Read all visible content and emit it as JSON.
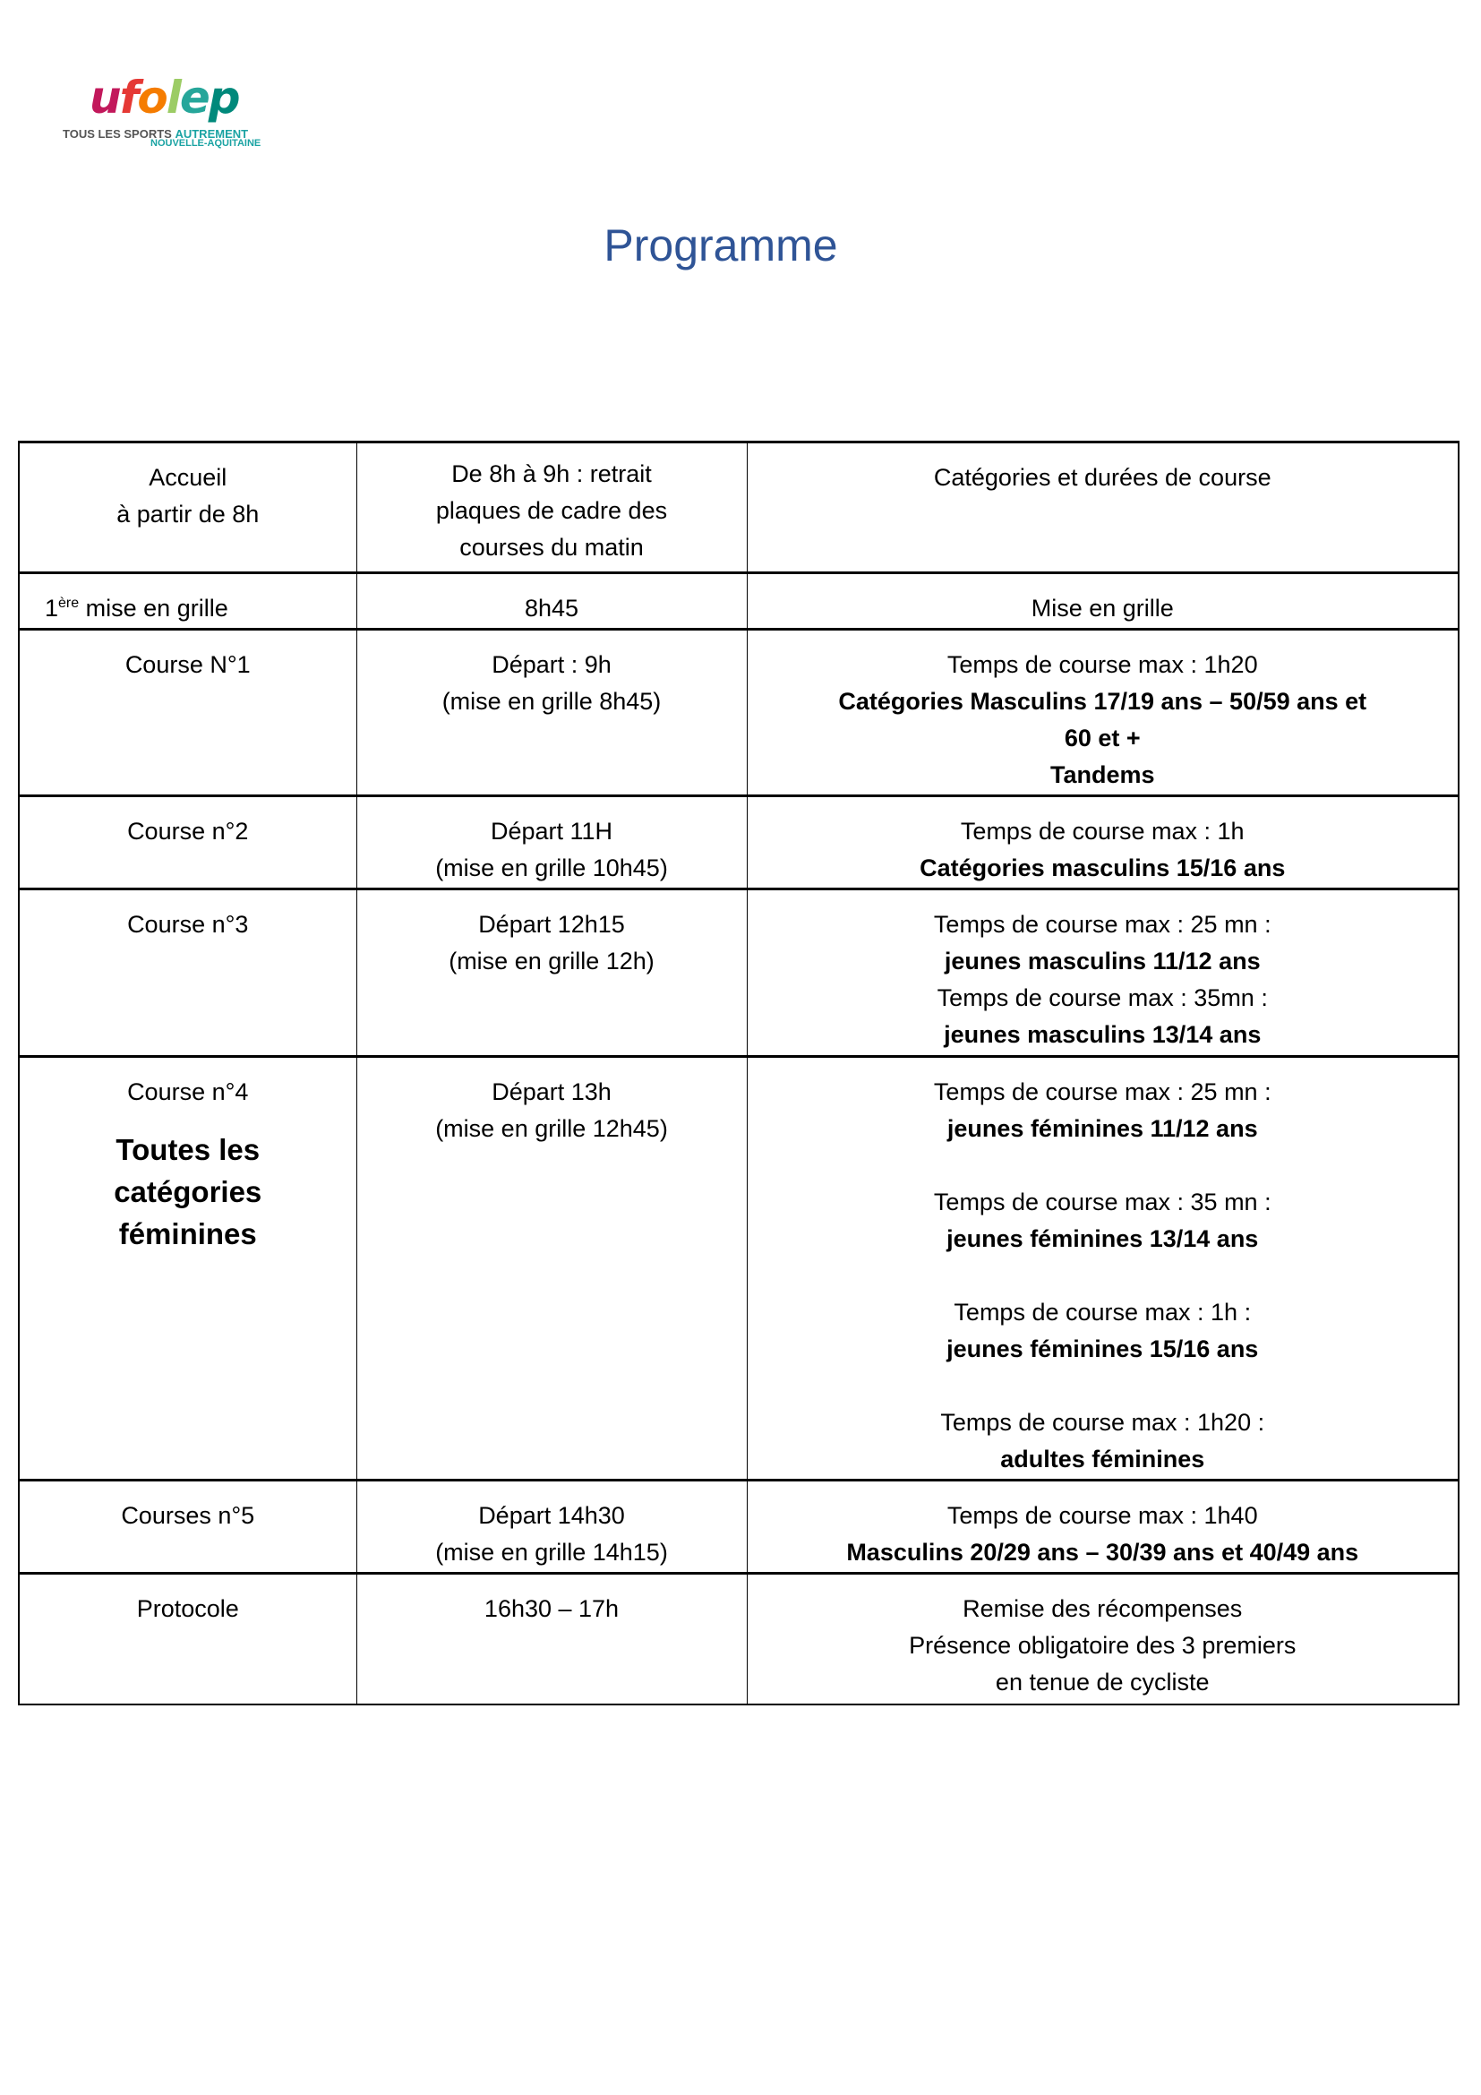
{
  "logo": {
    "word": "ufolep",
    "tagline": "TOUS LES SPORTS",
    "tagline_accent": "AUTREMENT",
    "region": "NOUVELLE-AQUITAINE"
  },
  "title": "Programme",
  "rows": [
    {
      "col1": [
        "Accueil",
        "à partir de 8h"
      ],
      "col2": [
        "De 8h à 9h : retrait",
        "plaques de cadre des",
        "courses du matin"
      ],
      "col3": [
        "Catégories et durées de course"
      ]
    },
    {
      "col1_num": "1",
      "col1_sup": "ère",
      "col1_rest": " mise en grille",
      "col2": [
        "8h45"
      ],
      "col3": [
        "Mise en grille"
      ]
    },
    {
      "col1": [
        "Course N°1"
      ],
      "col2": [
        "Départ : 9h",
        "(mise en grille 8h45)"
      ],
      "col3_normal": "Temps de course max : 1h20",
      "col3_bold": [
        "Catégories Masculins 17/19 ans – 50/59 ans et",
        "60 et +",
        "Tandems"
      ]
    },
    {
      "col1": [
        "Course n°2"
      ],
      "col2": [
        "Départ 11H",
        "(mise en grille 10h45)"
      ],
      "col3_normal": "Temps de course max : 1h",
      "col3_bold": [
        "Catégories masculins 15/16 ans"
      ]
    },
    {
      "col1": [
        "Course n°3"
      ],
      "col2": [
        "Départ 12h15",
        "(mise en grille 12h)"
      ],
      "col3_pairs": [
        [
          "Temps de course max : 25 mn :",
          "jeunes masculins 11/12 ans"
        ],
        [
          "Temps de course max : 35mn :",
          "jeunes masculins 13/14 ans"
        ]
      ]
    },
    {
      "col1": [
        "Course n°4"
      ],
      "col1_bold": [
        "Toutes les",
        "catégories",
        "féminines"
      ],
      "col2": [
        "Départ 13h",
        "(mise en grille 12h45)"
      ],
      "col3_pairs": [
        [
          "Temps de course max : 25 mn :",
          "jeunes féminines 11/12 ans"
        ],
        [
          "Temps de course max : 35 mn :",
          "jeunes féminines 13/14 ans"
        ],
        [
          "Temps de course max : 1h :",
          "jeunes féminines 15/16 ans"
        ],
        [
          "Temps de course max : 1h20 :",
          "adultes féminines"
        ]
      ]
    },
    {
      "col1": [
        "Courses n°5"
      ],
      "col2": [
        "Départ 14h30",
        "(mise en grille 14h15)"
      ],
      "col3_normal": "Temps de course max : 1h40",
      "col3_bold": [
        "Masculins 20/29 ans – 30/39 ans et 40/49 ans"
      ]
    },
    {
      "col1": [
        "Protocole"
      ],
      "col2": [
        "16h30 – 17h"
      ],
      "col3": [
        "Remise des récompenses",
        "Présence obligatoire des 3 premiers",
        "en tenue de cycliste"
      ]
    }
  ]
}
